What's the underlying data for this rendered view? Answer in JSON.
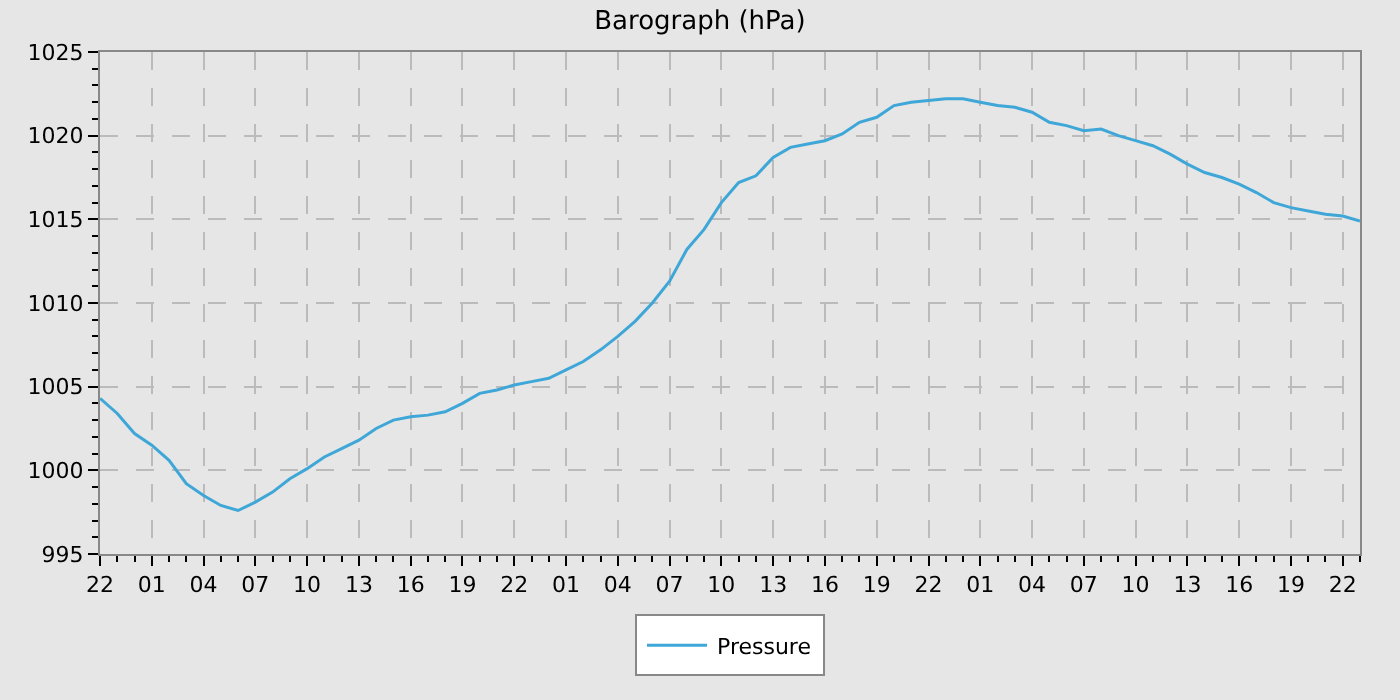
{
  "chart_data": {
    "type": "line",
    "title": "Barograph (hPa)",
    "legend": "bottom",
    "grid": true,
    "line_style": "solid",
    "marker": "none",
    "categories": [
      "22",
      null,
      null,
      "01",
      null,
      null,
      "04",
      null,
      null,
      "07",
      null,
      null,
      "10",
      null,
      null,
      "13",
      null,
      null,
      "16",
      null,
      null,
      "19",
      null,
      null,
      "22",
      null,
      null,
      "01",
      null,
      null,
      "04",
      null,
      null,
      "07",
      null,
      null,
      "10",
      null,
      null,
      "13",
      null,
      null,
      "16",
      null,
      null,
      "19",
      null,
      null,
      "22",
      null,
      null,
      "01",
      null,
      null,
      "04",
      null,
      null,
      "07",
      null,
      null,
      "10",
      null,
      null,
      "13",
      null,
      null,
      "16",
      null,
      null,
      "19",
      null,
      null,
      "22",
      null
    ],
    "series": [
      {
        "name": "Pressure",
        "color": "#3fa7d8",
        "values": [
          1004.3,
          1003.4,
          1002.2,
          1001.5,
          1000.6,
          999.2,
          998.5,
          997.9,
          997.6,
          998.1,
          998.7,
          999.5,
          1000.1,
          1000.8,
          1001.3,
          1001.8,
          1002.5,
          1003.0,
          1003.2,
          1003.3,
          1003.5,
          1004.0,
          1004.6,
          1004.8,
          1005.1,
          1005.3,
          1005.5,
          1006.0,
          1006.5,
          1007.2,
          1008.0,
          1008.9,
          1010.0,
          1011.3,
          1013.2,
          1014.4,
          1016.0,
          1017.2,
          1017.6,
          1018.7,
          1019.3,
          1019.5,
          1019.7,
          1020.1,
          1020.8,
          1021.1,
          1021.8,
          1022.0,
          1022.1,
          1022.2,
          1022.2,
          1022.0,
          1021.8,
          1021.7,
          1021.4,
          1020.8,
          1020.6,
          1020.3,
          1020.4,
          1020.0,
          1019.7,
          1019.4,
          1018.9,
          1018.3,
          1017.8,
          1017.5,
          1017.1,
          1016.6,
          1016.0,
          1015.7,
          1015.5,
          1015.3,
          1015.2,
          1014.9
        ]
      }
    ],
    "ylim": [
      995,
      1025
    ],
    "yticks": [
      995,
      1000,
      1005,
      1010,
      1015,
      1020,
      1025,
      {
        "value": 996,
        "label": null
      },
      {
        "value": 997,
        "label": null
      },
      {
        "value": 998,
        "label": null
      },
      {
        "value": 999,
        "label": null
      },
      {
        "value": 1001,
        "label": null
      },
      {
        "value": 1002,
        "label": null
      },
      {
        "value": 1003,
        "label": null
      },
      {
        "value": 1004,
        "label": null
      },
      {
        "value": 1006,
        "label": null
      },
      {
        "value": 1007,
        "label": null
      },
      {
        "value": 1008,
        "label": null
      },
      {
        "value": 1009,
        "label": null
      },
      {
        "value": 1011,
        "label": null
      },
      {
        "value": 1012,
        "label": null
      },
      {
        "value": 1013,
        "label": null
      },
      {
        "value": 1014,
        "label": null
      },
      {
        "value": 1016,
        "label": null
      },
      {
        "value": 1017,
        "label": null
      },
      {
        "value": 1018,
        "label": null
      },
      {
        "value": 1019,
        "label": null
      },
      {
        "value": 1021,
        "label": null
      },
      {
        "value": 1022,
        "label": null
      },
      {
        "value": 1023,
        "label": null
      },
      {
        "value": 1024,
        "label": null
      }
    ]
  }
}
